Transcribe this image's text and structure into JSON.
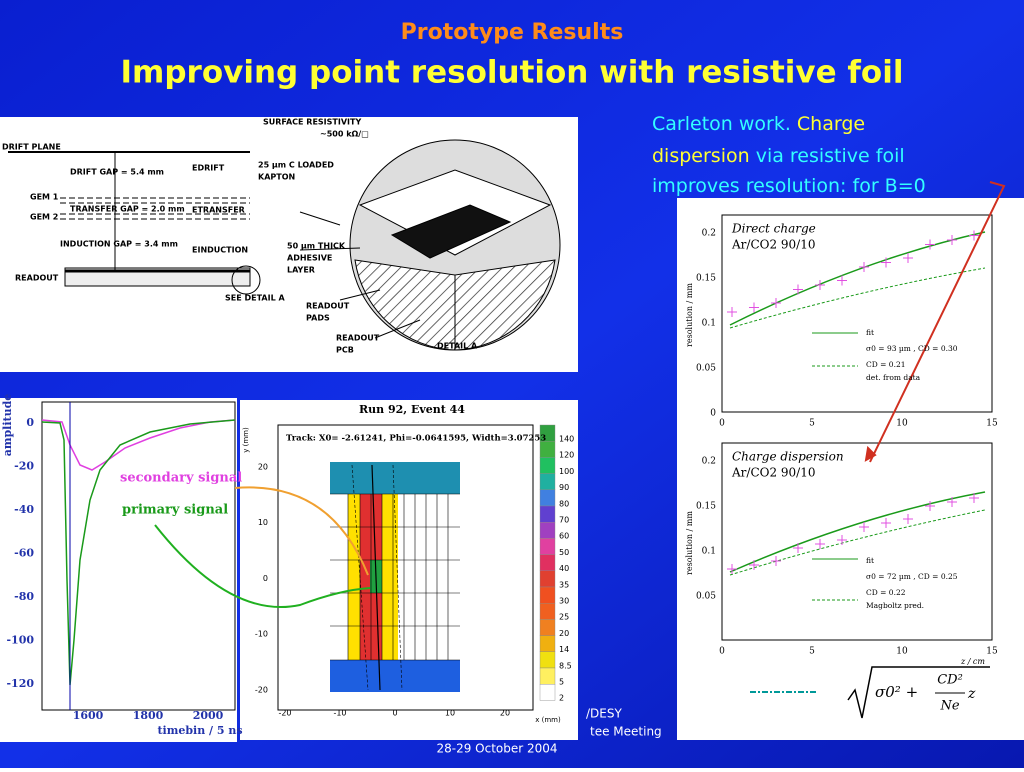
{
  "header": {
    "subtitle": "Prototype Results",
    "title": "Improving point resolution with resistive foil"
  },
  "note": {
    "lines": [
      [
        "Carleton work. ",
        "Charge"
      ],
      [
        "dispersion",
        " via resistive foil"
      ],
      [
        "improves resolution: for B=0"
      ]
    ]
  },
  "detector_diagram": {
    "labels": [
      "DRIFT PLANE",
      "DRIFT GAP = 5.4 mm",
      "EDRIFT",
      "GEM 1",
      "TRANSFER GAP = 2.0 mm",
      "ETRANSFER",
      "GEM 2",
      "INDUCTION GAP = 3.4 mm",
      "EINDUCTION",
      "READOUT",
      "SEE DETAIL A",
      "SURFACE RESISTIVITY",
      "~500 kΩ/□",
      "25 µm C LOADED",
      "KAPTON",
      "50 µm THICK",
      "ADHESIVE",
      "LAYER",
      "READOUT",
      "PADS",
      "READOUT",
      "PCB",
      "DETAIL A"
    ]
  },
  "signal_plot": {
    "y_label": "amplitude",
    "x_label": "timebin / 5 ns",
    "yticks": [
      "0",
      "-20",
      "-40",
      "-60",
      "-80",
      "-100",
      "-120"
    ],
    "xticks": [
      "1600",
      "1800",
      "2000"
    ],
    "legend": [
      "secondary signal",
      "primary signal"
    ]
  },
  "event_display": {
    "title": "Run 92, Event 44",
    "track": "Track: X0= -2.61241, Phi=-0.0641595, Width=3.07253",
    "y_label": "y (mm)",
    "x_label": "x (mm)",
    "yticks": [
      "20",
      "10",
      "0",
      "-10",
      "-20"
    ],
    "xticks": [
      "-20",
      "-10",
      "0",
      "10",
      "20"
    ],
    "colorbar": [
      "140",
      "120",
      "100",
      "90",
      "80",
      "70",
      "60",
      "50",
      "40",
      "35",
      "30",
      "25",
      "20",
      "14",
      "8.5",
      "5",
      "2"
    ]
  },
  "resolution_plots": {
    "y_label": "resolution / mm",
    "x_label": "z / cm",
    "xticks": [
      "0",
      "5",
      "10",
      "15"
    ],
    "yticks": [
      "0.2",
      "0.15",
      "0.1",
      "0.05",
      "0"
    ],
    "panels": [
      {
        "title": "Direct charge",
        "gas": "Ar/CO2 90/10",
        "legend": [
          "fit",
          "σ0 = 93 µm , CD = 0.30",
          "CD = 0.21",
          "det. from data"
        ]
      },
      {
        "title": "Charge dispersion",
        "gas": "Ar/CO2 90/10",
        "legend": [
          "fit",
          "σ0 = 72 µm , CD = 0.25",
          "CD = 0.22",
          "Magboltz pred."
        ]
      }
    ],
    "formula": [
      "σ0² + ",
      "CD²",
      "Ne",
      "z"
    ]
  },
  "footer": [
    "/DESY",
    "tee Meeting",
    "28-29 October 2004"
  ]
}
